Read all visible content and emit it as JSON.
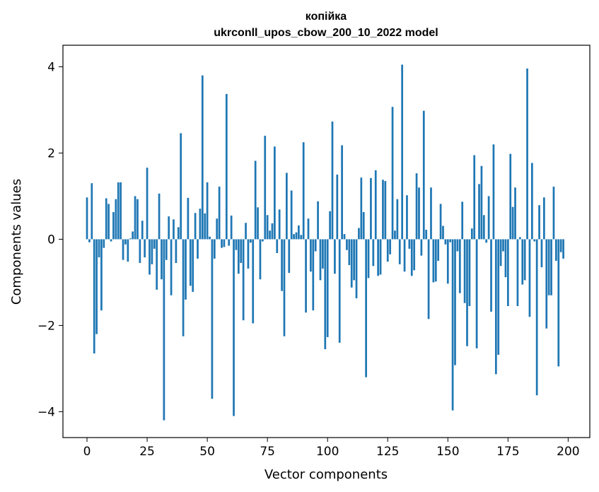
{
  "chart_data": {
    "type": "bar",
    "title": "копійка",
    "subtitle": "ukrconll_upos_cbow_200_10_2022 model",
    "xlabel": "Vector components",
    "ylabel": "Components values",
    "xlim": [
      -10,
      209
    ],
    "ylim": [
      -4.6,
      4.5
    ],
    "xticks": [
      0,
      25,
      50,
      75,
      100,
      125,
      150,
      175,
      200
    ],
    "yticks": [
      -4,
      -2,
      0,
      2,
      4
    ],
    "xtick_labels": [
      "0",
      "25",
      "50",
      "75",
      "100",
      "125",
      "150",
      "175",
      "200"
    ],
    "ytick_labels": [
      "−4",
      "−2",
      "0",
      "2",
      "4"
    ],
    "bar_color": "#1f77b4",
    "grid": false,
    "values": [
      0.97,
      -0.07,
      1.3,
      -2.65,
      -2.2,
      -0.42,
      -1.65,
      -0.2,
      0.95,
      0.82,
      -0.05,
      0.63,
      0.93,
      1.32,
      1.32,
      -0.48,
      -0.12,
      -0.52,
      0.02,
      0.18,
      1.0,
      0.93,
      -0.55,
      0.43,
      -0.42,
      1.66,
      -0.82,
      -0.58,
      -0.22,
      -1.17,
      1.06,
      -0.93,
      -4.2,
      -0.48,
      0.53,
      -1.3,
      0.46,
      -0.55,
      0.28,
      2.46,
      -2.25,
      -1.4,
      0.96,
      -1.08,
      -1.22,
      0.61,
      -0.45,
      0.71,
      3.8,
      0.6,
      1.32,
      0.06,
      -3.7,
      -0.45,
      0.48,
      1.22,
      -0.2,
      -0.18,
      3.37,
      -0.15,
      0.55,
      -4.1,
      -0.25,
      -0.8,
      -0.55,
      -1.88,
      0.38,
      -0.68,
      -0.08,
      -1.95,
      1.82,
      0.74,
      -0.93,
      -0.05,
      2.4,
      0.56,
      0.2,
      0.37,
      2.15,
      -0.32,
      0.69,
      -1.2,
      -2.25,
      1.54,
      -0.78,
      1.13,
      0.12,
      0.16,
      0.32,
      0.1,
      2.25,
      -1.7,
      0.48,
      -0.75,
      -1.65,
      -0.28,
      0.88,
      -0.95,
      -0.68,
      -2.55,
      -2.27,
      0.65,
      2.73,
      -0.8,
      1.5,
      -2.4,
      2.18,
      0.12,
      -0.25,
      -0.6,
      -1.12,
      -0.95,
      -1.37,
      0.26,
      1.43,
      0.63,
      -3.2,
      -0.9,
      1.42,
      -0.62,
      1.6,
      -0.85,
      -0.82,
      1.38,
      1.35,
      -0.52,
      -0.35,
      3.07,
      0.2,
      0.93,
      -0.58,
      4.05,
      -0.75,
      1.02,
      -0.22,
      -0.85,
      -0.72,
      1.53,
      1.2,
      -0.38,
      2.98,
      0.22,
      -1.85,
      1.2,
      -1.0,
      -0.98,
      -0.5,
      0.82,
      0.31,
      -0.12,
      -1.03,
      -0.07,
      -3.97,
      -2.92,
      -0.28,
      -1.25,
      0.87,
      -1.48,
      -2.48,
      -1.55,
      0.25,
      1.95,
      -2.53,
      1.28,
      1.7,
      0.56,
      -0.08,
      1.0,
      -1.68,
      2.2,
      -3.13,
      -2.68,
      -0.62,
      -0.28,
      -0.88,
      -1.55,
      1.98,
      0.75,
      1.2,
      -1.55,
      0.05,
      -1.05,
      -0.95,
      3.96,
      -1.8,
      1.77,
      -0.05,
      -3.62,
      0.79,
      -0.65,
      0.97,
      -2.07,
      -1.3,
      -1.3,
      1.22,
      -0.5,
      -2.95,
      -0.3,
      -0.45
    ]
  }
}
